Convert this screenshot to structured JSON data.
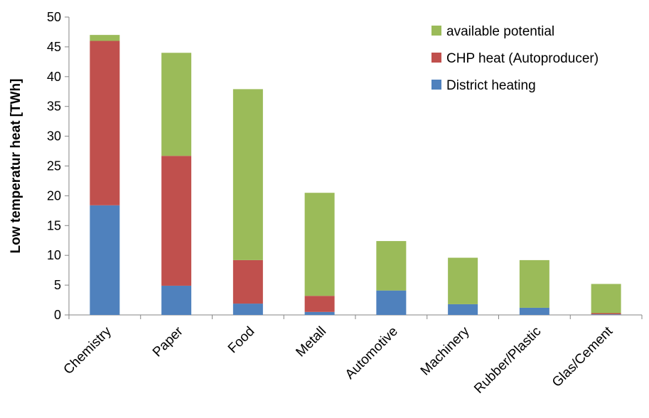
{
  "chart_data": {
    "type": "bar",
    "stacked": true,
    "title": "",
    "xlabel": "",
    "ylabel": "Low temperatur heat [TWh]",
    "ylim": [
      0,
      50
    ],
    "yticks": [
      0,
      5,
      10,
      15,
      20,
      25,
      30,
      35,
      40,
      45,
      50
    ],
    "grid": false,
    "legend_position": "top-right",
    "categories": [
      "Chemistry",
      "Paper",
      "Food",
      "Metall",
      "Automotive",
      "Machinery",
      "Rubber/Plastic",
      "Glas/Cement"
    ],
    "series": [
      {
        "name": "District heating",
        "color": "#4F81BD",
        "values": [
          18.4,
          4.9,
          1.9,
          0.5,
          4.1,
          1.8,
          1.2,
          0.1
        ]
      },
      {
        "name": "CHP heat (Autoproducer)",
        "color": "#C0504D",
        "values": [
          27.6,
          21.8,
          7.3,
          2.7,
          0,
          0,
          0,
          0.2
        ]
      },
      {
        "name": "available potential",
        "color": "#9BBB59",
        "values": [
          1.0,
          17.3,
          28.7,
          17.3,
          8.3,
          7.8,
          8.0,
          4.9
        ]
      }
    ],
    "legend_order": [
      "available potential",
      "CHP heat (Autoproducer)",
      "District heating"
    ]
  }
}
